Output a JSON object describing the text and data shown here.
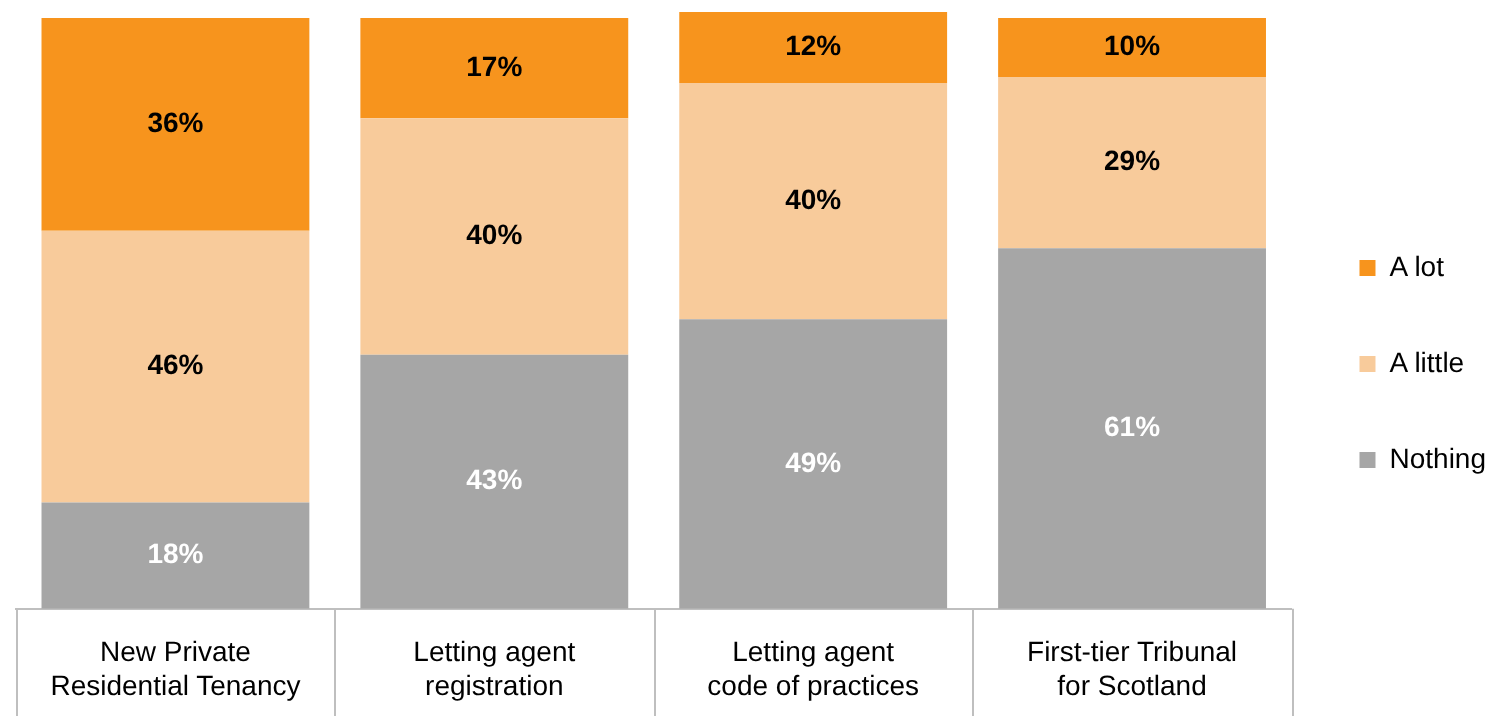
{
  "chart_data": {
    "type": "bar",
    "stacked": true,
    "legend": "right",
    "categories": [
      "New Private Residential Tenancy",
      "Letting agent registration",
      "Letting agent code of practices",
      "First-tier Tribunal for Scotland"
    ],
    "series": [
      {
        "name": "Nothing",
        "color": "#a6a6a6",
        "values": [
          18,
          43,
          49,
          61
        ],
        "value_labels": [
          "18%",
          "43%",
          "49%",
          "61%"
        ]
      },
      {
        "name": "A little",
        "color": "#f8cb9b",
        "values": [
          46,
          40,
          40,
          29
        ],
        "value_labels": [
          "46%",
          "40%",
          "40%",
          "29%"
        ]
      },
      {
        "name": "A lot",
        "color": "#f7941d",
        "values": [
          36,
          17,
          12,
          10
        ],
        "value_labels": [
          "36%",
          "17%",
          "12%",
          "10%"
        ]
      }
    ]
  }
}
